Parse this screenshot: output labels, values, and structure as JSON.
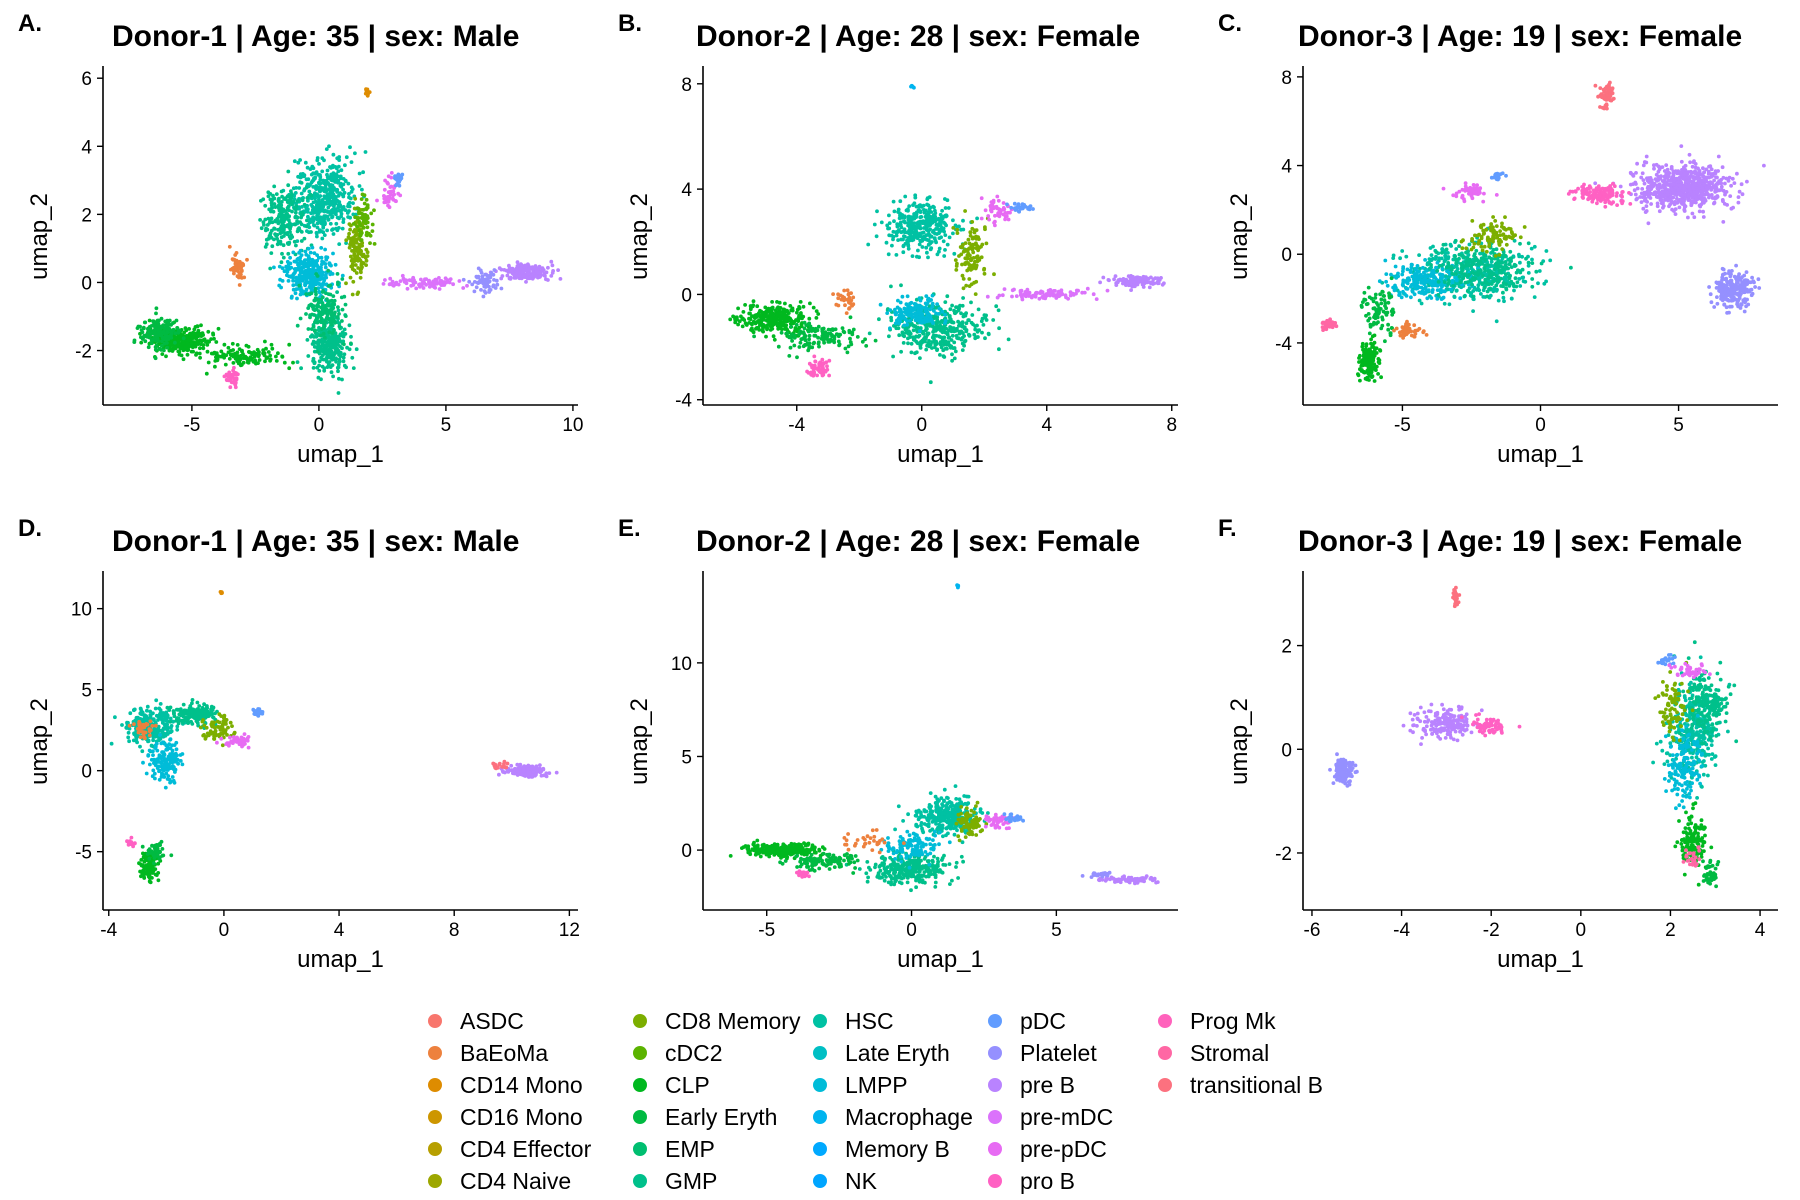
{
  "figure": {
    "legend": {
      "entries": [
        {
          "label": "ASDC",
          "color": "#F8766D"
        },
        {
          "label": "BaEoMa",
          "color": "#ED813E"
        },
        {
          "label": "CD14 Mono",
          "color": "#DE8C00"
        },
        {
          "label": "CD16 Mono",
          "color": "#CD9600"
        },
        {
          "label": "CD4 Effector",
          "color": "#B79F00"
        },
        {
          "label": "CD4 Naive",
          "color": "#9DA700"
        },
        {
          "label": "CD8 Memory",
          "color": "#7CAE00"
        },
        {
          "label": "cDC2",
          "color": "#5BB300"
        },
        {
          "label": "CLP",
          "color": "#00B81F"
        },
        {
          "label": "Early Eryth",
          "color": "#00BA42"
        },
        {
          "label": "EMP",
          "color": "#00BE70"
        },
        {
          "label": "GMP",
          "color": "#00C08B"
        },
        {
          "label": "HSC",
          "color": "#00C1A3"
        },
        {
          "label": "Late Eryth",
          "color": "#00BFC4"
        },
        {
          "label": "LMPP",
          "color": "#00BCD8"
        },
        {
          "label": "Macrophage",
          "color": "#00B4EF"
        },
        {
          "label": "Memory B",
          "color": "#00A9FF"
        },
        {
          "label": "NK",
          "color": "#00A5FF"
        },
        {
          "label": "pDC",
          "color": "#619CFF"
        },
        {
          "label": "Platelet",
          "color": "#9590FF"
        },
        {
          "label": "pre B",
          "color": "#B983FF"
        },
        {
          "label": "pre-mDC",
          "color": "#DB72FB"
        },
        {
          "label": "pre-pDC",
          "color": "#E76BF3"
        },
        {
          "label": "pro B",
          "color": "#FF61C3"
        },
        {
          "label": "Prog Mk",
          "color": "#FF62BC"
        },
        {
          "label": "Stromal",
          "color": "#FF67A4"
        },
        {
          "label": "transitional B",
          "color": "#FC717F"
        }
      ]
    }
  },
  "chart_data": [
    {
      "panel": "A.",
      "type": "scatter",
      "title": "Donor-1 | Age: 35 | sex: Male",
      "xlabel": "umap_1",
      "ylabel": "umap_2",
      "xlim": [
        -8.5,
        10.2
      ],
      "ylim": [
        -3.6,
        6.3
      ],
      "xticks": [
        -5,
        0,
        5,
        10
      ],
      "yticks": [
        -2,
        0,
        2,
        4,
        6
      ],
      "xtick_labels": [
        "-5",
        "0",
        "5",
        "10"
      ],
      "ytick_labels": [
        "-2",
        "0",
        "2",
        "4",
        "6"
      ],
      "clusters": [
        {
          "cell_type": "HSC",
          "x": 0.2,
          "y": 2.5,
          "sx": 1.1,
          "sy": 1.0,
          "n": 430
        },
        {
          "cell_type": "GMP",
          "x": -1.4,
          "y": 1.9,
          "sx": 0.8,
          "sy": 0.9,
          "n": 220
        },
        {
          "cell_type": "LMPP",
          "x": -0.4,
          "y": 0.2,
          "sx": 0.9,
          "sy": 0.6,
          "n": 300
        },
        {
          "cell_type": "GMP",
          "x": 0.4,
          "y": -1.8,
          "sx": 0.6,
          "sy": 0.8,
          "n": 300
        },
        {
          "cell_type": "EMP",
          "x": 0.2,
          "y": -0.9,
          "sx": 0.7,
          "sy": 0.8,
          "n": 150
        },
        {
          "cell_type": "CLP",
          "x": -5.5,
          "y": -1.7,
          "sx": 1.1,
          "sy": 0.35,
          "n": 320
        },
        {
          "cell_type": "Early Eryth",
          "x": -6.3,
          "y": -1.5,
          "sx": 0.7,
          "sy": 0.4,
          "n": 150
        },
        {
          "cell_type": "CLP",
          "x": -3.0,
          "y": -2.2,
          "sx": 1.4,
          "sy": 0.3,
          "n": 120
        },
        {
          "cell_type": "CD8 Memory",
          "x": 1.5,
          "y": 1.0,
          "sx": 0.35,
          "sy": 1.0,
          "n": 130
        },
        {
          "cell_type": "cDC2",
          "x": 1.8,
          "y": 1.8,
          "sx": 0.3,
          "sy": 0.6,
          "n": 60
        },
        {
          "cell_type": "BaEoMa",
          "x": -3.2,
          "y": 0.5,
          "sx": 0.25,
          "sy": 0.4,
          "n": 50
        },
        {
          "cell_type": "pre-mDC",
          "x": 4.2,
          "y": 0.0,
          "sx": 1.3,
          "sy": 0.15,
          "n": 90
        },
        {
          "cell_type": "pre B",
          "x": 8.1,
          "y": 0.3,
          "sx": 0.8,
          "sy": 0.2,
          "n": 200
        },
        {
          "cell_type": "Platelet",
          "x": 6.5,
          "y": 0.0,
          "sx": 0.5,
          "sy": 0.3,
          "n": 70
        },
        {
          "cell_type": "pre-pDC",
          "x": 2.8,
          "y": 2.6,
          "sx": 0.3,
          "sy": 0.4,
          "n": 40
        },
        {
          "cell_type": "pDC",
          "x": 3.1,
          "y": 3.0,
          "sx": 0.2,
          "sy": 0.2,
          "n": 20
        },
        {
          "cell_type": "pro B",
          "x": -3.4,
          "y": -2.8,
          "sx": 0.2,
          "sy": 0.25,
          "n": 35
        },
        {
          "cell_type": "CD14 Mono",
          "x": 1.9,
          "y": 5.6,
          "sx": 0.06,
          "sy": 0.1,
          "n": 12
        }
      ]
    },
    {
      "panel": "B.",
      "type": "scatter",
      "title": "Donor-2 | Age: 28 | sex: Female",
      "xlabel": "umap_1",
      "ylabel": "umap_2",
      "xlim": [
        -7.0,
        8.2
      ],
      "ylim": [
        -4.2,
        8.6
      ],
      "xticks": [
        -4,
        0,
        4,
        8
      ],
      "yticks": [
        -4,
        0,
        4,
        8
      ],
      "xtick_labels": [
        "-4",
        "0",
        "4",
        "8"
      ],
      "ytick_labels": [
        "-4",
        "0",
        "4",
        "8"
      ],
      "clusters": [
        {
          "cell_type": "HSC",
          "x": 0.0,
          "y": 2.6,
          "sx": 1.0,
          "sy": 0.9,
          "n": 350
        },
        {
          "cell_type": "GMP",
          "x": 0.5,
          "y": -1.3,
          "sx": 1.3,
          "sy": 0.9,
          "n": 380
        },
        {
          "cell_type": "LMPP",
          "x": -0.2,
          "y": -0.7,
          "sx": 0.8,
          "sy": 0.5,
          "n": 150
        },
        {
          "cell_type": "CLP",
          "x": -4.8,
          "y": -0.9,
          "sx": 1.0,
          "sy": 0.5,
          "n": 300
        },
        {
          "cell_type": "Early Eryth",
          "x": -3.2,
          "y": -1.6,
          "sx": 1.2,
          "sy": 0.5,
          "n": 130
        },
        {
          "cell_type": "CD8 Memory",
          "x": 1.6,
          "y": 1.5,
          "sx": 0.4,
          "sy": 1.0,
          "n": 110
        },
        {
          "cell_type": "BaEoMa",
          "x": -2.4,
          "y": -0.2,
          "sx": 0.3,
          "sy": 0.4,
          "n": 30
        },
        {
          "cell_type": "pre-mDC",
          "x": 4.0,
          "y": 0.0,
          "sx": 1.3,
          "sy": 0.2,
          "n": 90
        },
        {
          "cell_type": "pre B",
          "x": 6.8,
          "y": 0.5,
          "sx": 0.8,
          "sy": 0.2,
          "n": 110
        },
        {
          "cell_type": "pre-pDC",
          "x": 2.4,
          "y": 3.2,
          "sx": 0.4,
          "sy": 0.4,
          "n": 50
        },
        {
          "cell_type": "pDC",
          "x": 3.2,
          "y": 3.3,
          "sx": 0.3,
          "sy": 0.15,
          "n": 30
        },
        {
          "cell_type": "pro B",
          "x": -3.3,
          "y": -2.8,
          "sx": 0.4,
          "sy": 0.3,
          "n": 50
        },
        {
          "cell_type": "Macrophage",
          "x": -0.3,
          "y": 7.9,
          "sx": 0.05,
          "sy": 0.05,
          "n": 6
        }
      ]
    },
    {
      "panel": "C.",
      "type": "scatter",
      "title": "Donor-3 | Age: 19 | sex: Female",
      "xlabel": "umap_1",
      "ylabel": "umap_2",
      "xlim": [
        -8.6,
        8.6
      ],
      "ylim": [
        -6.8,
        8.4
      ],
      "xticks": [
        -5,
        0,
        5
      ],
      "yticks": [
        -4,
        0,
        4,
        8
      ],
      "xtick_labels": [
        "-5",
        "0",
        "5"
      ],
      "ytick_labels": [
        "-4",
        "0",
        "4",
        "8"
      ],
      "clusters": [
        {
          "cell_type": "HSC",
          "x": -2.6,
          "y": -0.8,
          "sx": 2.0,
          "sy": 1.2,
          "n": 380
        },
        {
          "cell_type": "LMPP",
          "x": -4.2,
          "y": -1.2,
          "sx": 1.2,
          "sy": 0.7,
          "n": 200
        },
        {
          "cell_type": "GMP",
          "x": -2.0,
          "y": -0.6,
          "sx": 1.6,
          "sy": 1.0,
          "n": 220
        },
        {
          "cell_type": "CLP",
          "x": -6.2,
          "y": -4.8,
          "sx": 0.35,
          "sy": 0.8,
          "n": 150
        },
        {
          "cell_type": "CD8 Memory",
          "x": -1.8,
          "y": 0.8,
          "sx": 0.9,
          "sy": 0.6,
          "n": 100
        },
        {
          "cell_type": "Early Eryth",
          "x": -5.8,
          "y": -2.5,
          "sx": 0.5,
          "sy": 1.0,
          "n": 80
        },
        {
          "cell_type": "pre B",
          "x": 5.2,
          "y": 3.0,
          "sx": 1.5,
          "sy": 0.9,
          "n": 650
        },
        {
          "cell_type": "Platelet",
          "x": 7.0,
          "y": -1.6,
          "sx": 0.6,
          "sy": 0.7,
          "n": 240
        },
        {
          "cell_type": "pro B",
          "x": 2.2,
          "y": 2.7,
          "sx": 0.8,
          "sy": 0.4,
          "n": 130
        },
        {
          "cell_type": "transitional B",
          "x": 2.4,
          "y": 7.2,
          "sx": 0.25,
          "sy": 0.5,
          "n": 60
        },
        {
          "cell_type": "pDC",
          "x": -1.5,
          "y": 3.5,
          "sx": 0.2,
          "sy": 0.2,
          "n": 20
        },
        {
          "cell_type": "pre-pDC",
          "x": -2.5,
          "y": 2.8,
          "sx": 0.5,
          "sy": 0.3,
          "n": 50
        },
        {
          "cell_type": "BaEoMa",
          "x": -4.8,
          "y": -3.5,
          "sx": 0.5,
          "sy": 0.3,
          "n": 40
        },
        {
          "cell_type": "Stromal",
          "x": -7.7,
          "y": -3.2,
          "sx": 0.3,
          "sy": 0.2,
          "n": 40
        }
      ]
    },
    {
      "panel": "D.",
      "type": "scatter",
      "title": "Donor-1 | Age: 35 | sex: Male",
      "xlabel": "umap_1",
      "ylabel": "umap_2",
      "xlim": [
        -4.2,
        12.3
      ],
      "ylim": [
        -8.6,
        12.2
      ],
      "xticks": [
        -4,
        0,
        4,
        8,
        12
      ],
      "yticks": [
        -5,
        0,
        5,
        10
      ],
      "xtick_labels": [
        "-4",
        "0",
        "4",
        "8",
        "12"
      ],
      "ytick_labels": [
        "-5",
        "0",
        "5",
        "10"
      ],
      "clusters": [
        {
          "cell_type": "HSC",
          "x": -2.5,
          "y": 2.8,
          "sx": 0.8,
          "sy": 1.1,
          "n": 260
        },
        {
          "cell_type": "GMP",
          "x": -1.0,
          "y": 3.5,
          "sx": 0.7,
          "sy": 0.6,
          "n": 170
        },
        {
          "cell_type": "LMPP",
          "x": -2.0,
          "y": 0.6,
          "sx": 0.5,
          "sy": 1.1,
          "n": 150
        },
        {
          "cell_type": "CD8 Memory",
          "x": -0.2,
          "y": 2.5,
          "sx": 0.5,
          "sy": 0.7,
          "n": 70
        },
        {
          "cell_type": "pre-pDC",
          "x": 0.5,
          "y": 1.8,
          "sx": 0.5,
          "sy": 0.3,
          "n": 50
        },
        {
          "cell_type": "pDC",
          "x": 1.2,
          "y": 3.6,
          "sx": 0.2,
          "sy": 0.2,
          "n": 20
        },
        {
          "cell_type": "CLP",
          "x": -2.6,
          "y": -6.0,
          "sx": 0.3,
          "sy": 0.9,
          "n": 110
        },
        {
          "cell_type": "Early Eryth",
          "x": -2.4,
          "y": -5.0,
          "sx": 0.3,
          "sy": 0.6,
          "n": 50
        },
        {
          "cell_type": "BaEoMa",
          "x": -2.8,
          "y": 2.6,
          "sx": 0.4,
          "sy": 0.6,
          "n": 35
        },
        {
          "cell_type": "pre B",
          "x": 10.5,
          "y": 0.0,
          "sx": 0.6,
          "sy": 0.3,
          "n": 160
        },
        {
          "cell_type": "transitional B",
          "x": 9.6,
          "y": 0.3,
          "sx": 0.3,
          "sy": 0.2,
          "n": 20
        },
        {
          "cell_type": "pro B",
          "x": -3.2,
          "y": -4.5,
          "sx": 0.15,
          "sy": 0.2,
          "n": 15
        },
        {
          "cell_type": "CD14 Mono",
          "x": -0.1,
          "y": 11.0,
          "sx": 0.04,
          "sy": 0.05,
          "n": 5
        }
      ]
    },
    {
      "panel": "E.",
      "type": "scatter",
      "title": "Donor-2 | Age: 28 | sex: Female",
      "xlabel": "umap_1",
      "ylabel": "umap_2",
      "xlim": [
        -7.2,
        9.2
      ],
      "ylim": [
        -3.2,
        14.8
      ],
      "xticks": [
        -5,
        0,
        5
      ],
      "yticks": [
        0,
        5,
        10
      ],
      "xtick_labels": [
        "-5",
        "0",
        "5"
      ],
      "ytick_labels": [
        "0",
        "5",
        "10"
      ],
      "clusters": [
        {
          "cell_type": "HSC",
          "x": 1.2,
          "y": 1.8,
          "sx": 1.0,
          "sy": 0.9,
          "n": 300
        },
        {
          "cell_type": "GMP",
          "x": 0.0,
          "y": -1.0,
          "sx": 1.2,
          "sy": 0.7,
          "n": 300
        },
        {
          "cell_type": "LMPP",
          "x": 0.0,
          "y": 0.2,
          "sx": 0.8,
          "sy": 0.6,
          "n": 120
        },
        {
          "cell_type": "CLP",
          "x": -4.5,
          "y": 0.0,
          "sx": 1.2,
          "sy": 0.3,
          "n": 280
        },
        {
          "cell_type": "Early Eryth",
          "x": -3.0,
          "y": -0.6,
          "sx": 1.0,
          "sy": 0.4,
          "n": 110
        },
        {
          "cell_type": "CD8 Memory",
          "x": 2.0,
          "y": 1.5,
          "sx": 0.4,
          "sy": 0.7,
          "n": 80
        },
        {
          "cell_type": "BaEoMa",
          "x": -1.5,
          "y": 0.5,
          "sx": 0.8,
          "sy": 0.4,
          "n": 30
        },
        {
          "cell_type": "pre-pDC",
          "x": 3.0,
          "y": 1.5,
          "sx": 0.4,
          "sy": 0.3,
          "n": 40
        },
        {
          "cell_type": "pDC",
          "x": 3.6,
          "y": 1.7,
          "sx": 0.3,
          "sy": 0.15,
          "n": 25
        },
        {
          "cell_type": "pre B",
          "x": 7.5,
          "y": -1.6,
          "sx": 0.9,
          "sy": 0.15,
          "n": 70
        },
        {
          "cell_type": "Platelet",
          "x": 6.5,
          "y": -1.3,
          "sx": 0.5,
          "sy": 0.12,
          "n": 30
        },
        {
          "cell_type": "pro B",
          "x": -3.8,
          "y": -1.3,
          "sx": 0.2,
          "sy": 0.2,
          "n": 20
        },
        {
          "cell_type": "Macrophage",
          "x": 1.6,
          "y": 14.1,
          "sx": 0.03,
          "sy": 0.05,
          "n": 4
        }
      ]
    },
    {
      "panel": "F.",
      "type": "scatter",
      "title": "Donor-3 | Age: 19 | sex: Female",
      "xlabel": "umap_1",
      "ylabel": "umap_2",
      "xlim": [
        -6.2,
        4.4
      ],
      "ylim": [
        -3.1,
        3.4
      ],
      "xticks": [
        -6,
        -4,
        -2,
        0,
        2,
        4
      ],
      "yticks": [
        -2,
        0,
        2
      ],
      "xtick_labels": [
        "-6",
        "-4",
        "-2",
        "0",
        "2",
        "4"
      ],
      "ytick_labels": [
        "-2",
        "0",
        "2"
      ],
      "clusters": [
        {
          "cell_type": "HSC",
          "x": 2.5,
          "y": 0.3,
          "sx": 0.5,
          "sy": 0.8,
          "n": 300
        },
        {
          "cell_type": "GMP",
          "x": 2.8,
          "y": 0.9,
          "sx": 0.45,
          "sy": 0.6,
          "n": 200
        },
        {
          "cell_type": "LMPP",
          "x": 2.3,
          "y": -0.4,
          "sx": 0.35,
          "sy": 0.6,
          "n": 150
        },
        {
          "cell_type": "CLP",
          "x": 2.5,
          "y": -1.8,
          "sx": 0.25,
          "sy": 0.5,
          "n": 150
        },
        {
          "cell_type": "CD8 Memory",
          "x": 2.1,
          "y": 0.8,
          "sx": 0.3,
          "sy": 0.5,
          "n": 80
        },
        {
          "cell_type": "Early Eryth",
          "x": 2.9,
          "y": -2.4,
          "sx": 0.15,
          "sy": 0.3,
          "n": 40
        },
        {
          "cell_type": "pre B",
          "x": -3.0,
          "y": 0.5,
          "sx": 0.6,
          "sy": 0.25,
          "n": 180
        },
        {
          "cell_type": "Platelet",
          "x": -5.3,
          "y": -0.4,
          "sx": 0.2,
          "sy": 0.25,
          "n": 120
        },
        {
          "cell_type": "pro B",
          "x": -2.0,
          "y": 0.45,
          "sx": 0.4,
          "sy": 0.15,
          "n": 70
        },
        {
          "cell_type": "transitional B",
          "x": -2.8,
          "y": 2.9,
          "sx": 0.05,
          "sy": 0.15,
          "n": 25
        },
        {
          "cell_type": "pDC",
          "x": 1.9,
          "y": 1.7,
          "sx": 0.15,
          "sy": 0.1,
          "n": 20
        },
        {
          "cell_type": "pre-pDC",
          "x": 2.4,
          "y": 1.5,
          "sx": 0.4,
          "sy": 0.15,
          "n": 40
        },
        {
          "cell_type": "Stromal",
          "x": 2.5,
          "y": -2.1,
          "sx": 0.2,
          "sy": 0.15,
          "n": 25
        }
      ]
    }
  ]
}
